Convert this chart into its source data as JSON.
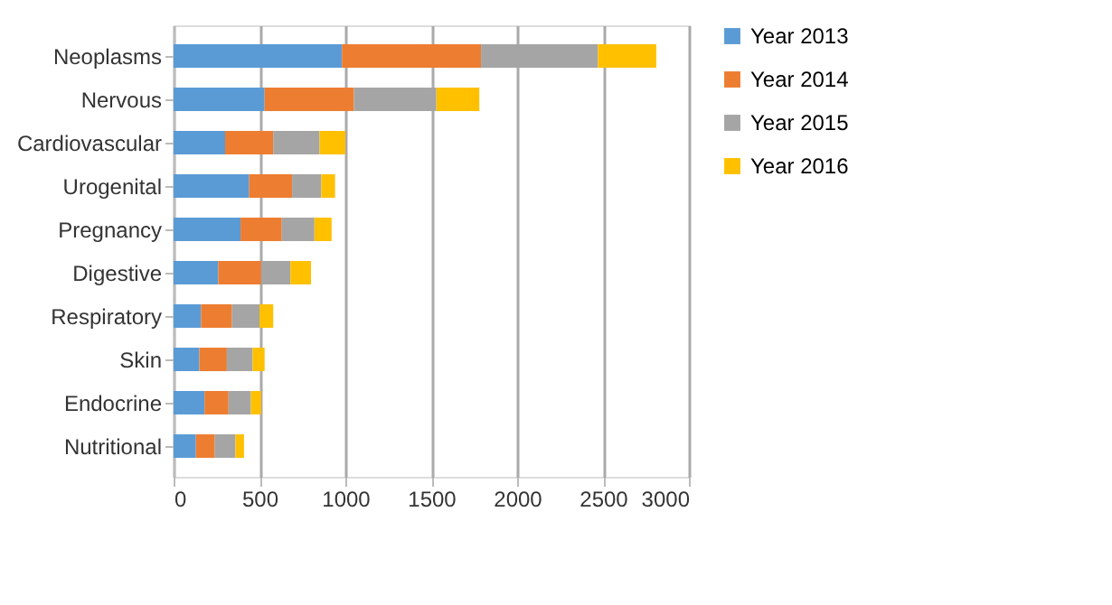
{
  "chart_data": {
    "type": "bar",
    "orientation": "horizontal",
    "stacked": true,
    "categories": [
      "Neoplasms",
      "Nervous",
      "Cardiovascular",
      "Urogenital",
      "Pregnancy",
      "Digestive",
      "Respiratory",
      "Skin",
      "Endocrine",
      "Nutritional"
    ],
    "series": [
      {
        "name": "Year 2013",
        "color": "#5b9bd5",
        "values": [
          980,
          530,
          300,
          440,
          390,
          260,
          160,
          150,
          180,
          130
        ]
      },
      {
        "name": "Year 2014",
        "color": "#ed7d31",
        "values": [
          810,
          520,
          280,
          250,
          240,
          250,
          180,
          160,
          140,
          110
        ]
      },
      {
        "name": "Year 2015",
        "color": "#a5a5a5",
        "values": [
          680,
          480,
          270,
          170,
          190,
          170,
          160,
          150,
          130,
          120
        ]
      },
      {
        "name": "Year 2016",
        "color": "#ffc000",
        "values": [
          340,
          250,
          150,
          80,
          100,
          120,
          80,
          70,
          60,
          50
        ]
      }
    ],
    "xlim": [
      0,
      3000
    ],
    "xticks": [
      0,
      500,
      1000,
      1500,
      2000,
      2500,
      3000
    ],
    "grid": "x",
    "legend": "right"
  }
}
